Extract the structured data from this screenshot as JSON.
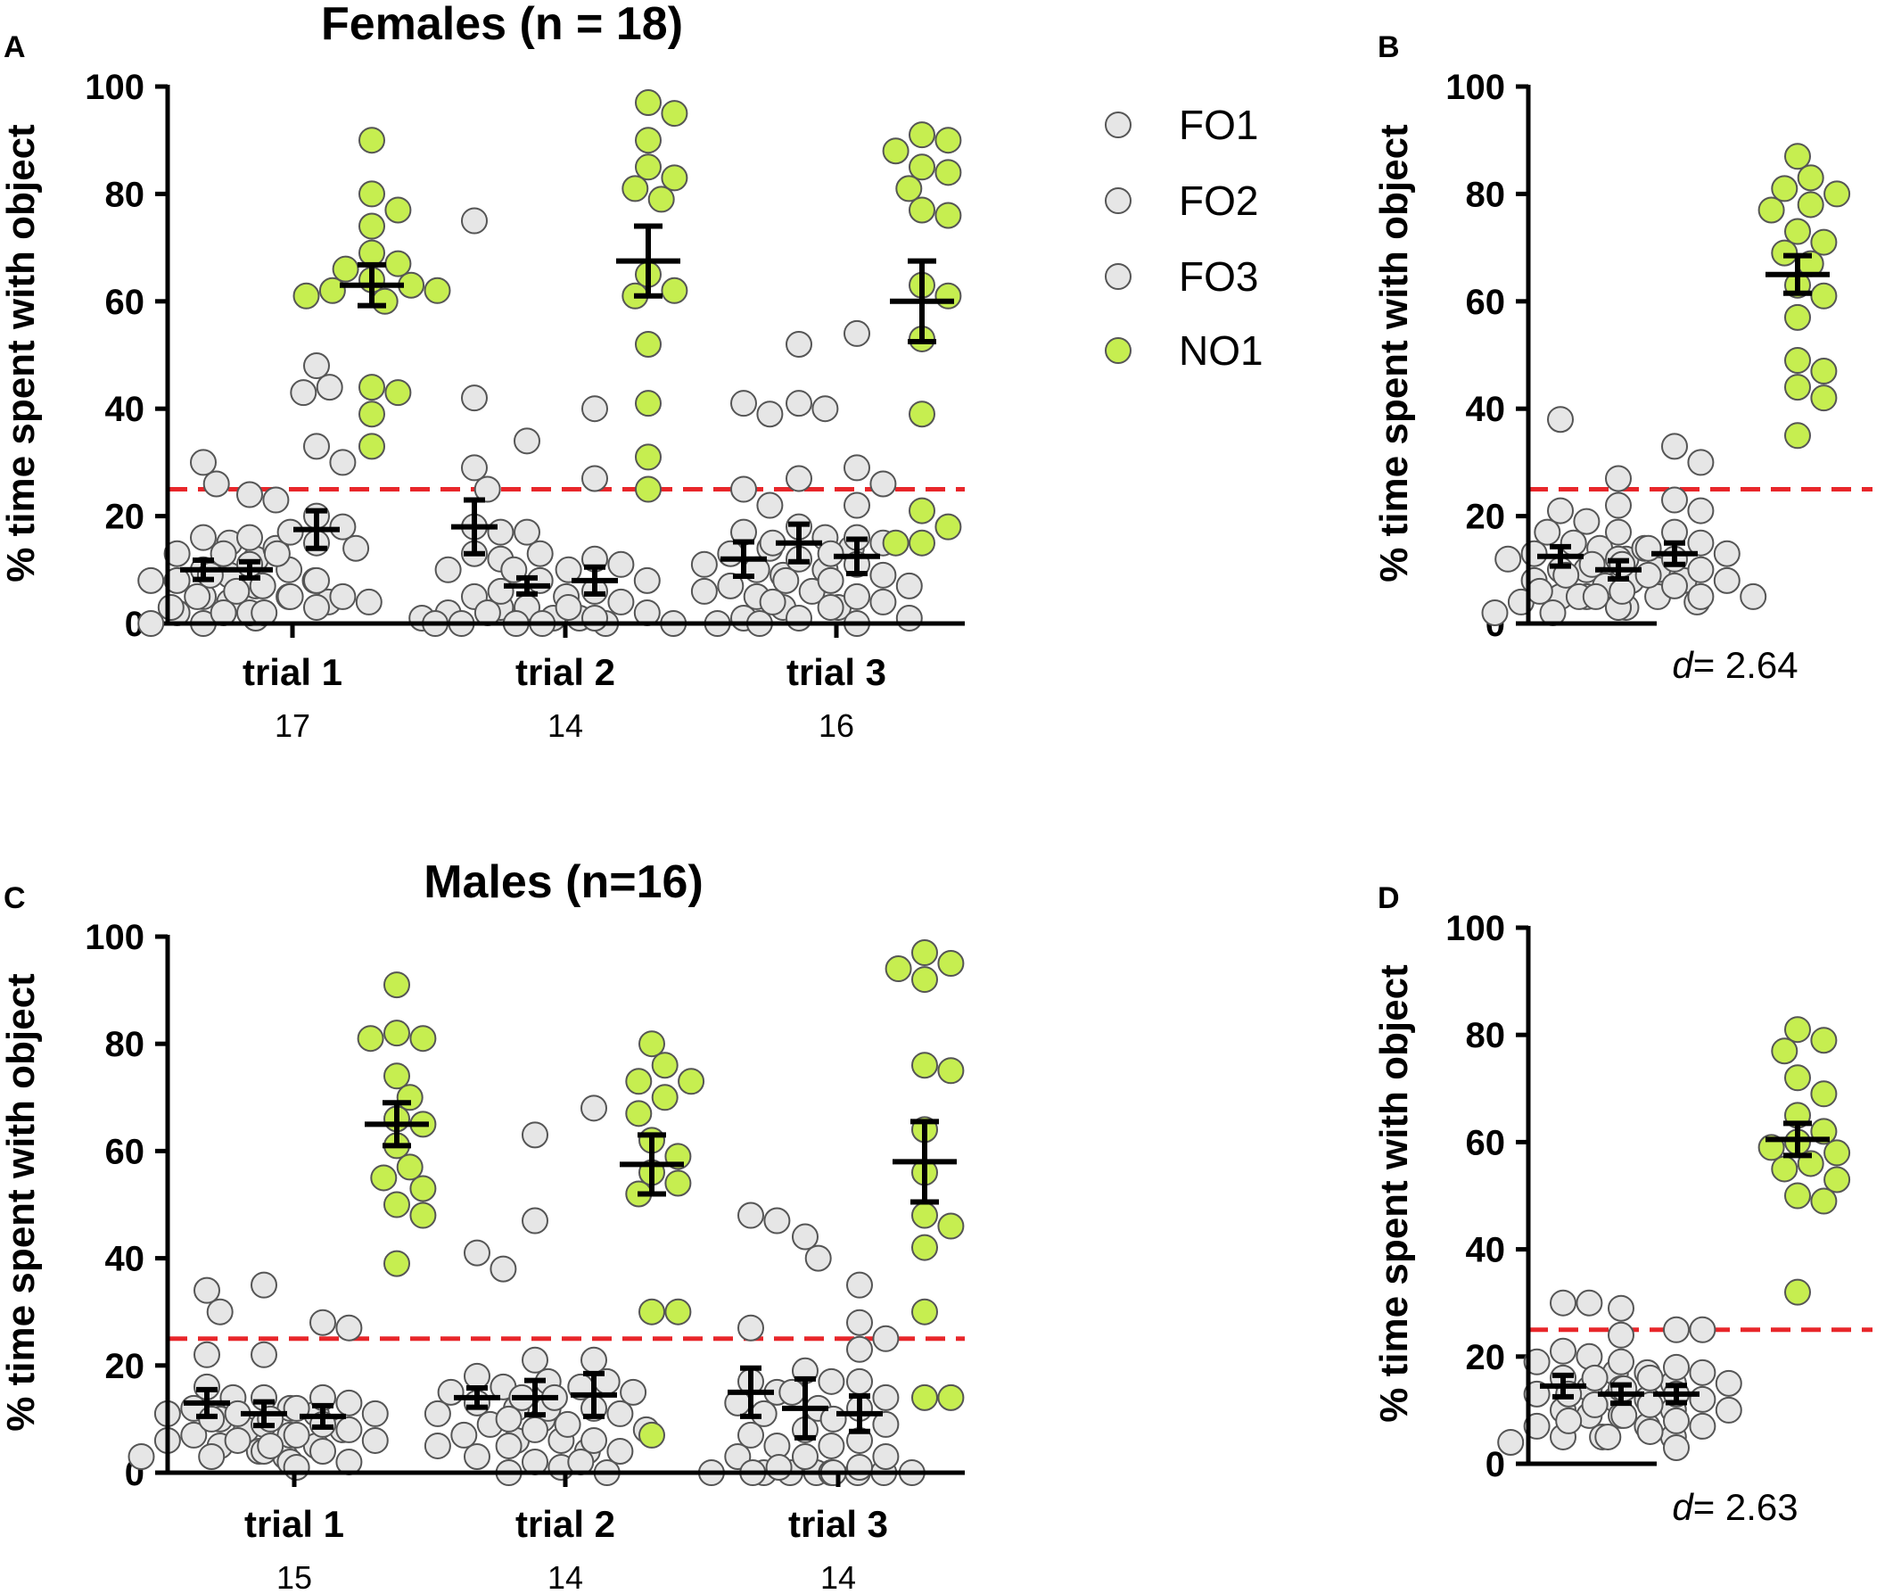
{
  "figure": {
    "legend": [
      {
        "label": "FO1",
        "color": "#e6e6e6"
      },
      {
        "label": "FO2",
        "color": "#e6e6e6"
      },
      {
        "label": "FO3",
        "color": "#e6e6e6"
      },
      {
        "label": "NO1",
        "color": "#c6ee50"
      }
    ],
    "colors": {
      "familiar": "#e6e6e6",
      "novel": "#c6ee50",
      "outline": "#555555",
      "chance_line": "#e8262a",
      "axis": "#000000"
    }
  },
  "chart_data": [
    {
      "id": "A",
      "type": "scatter",
      "panel_letter": "A",
      "title": "Females (n = 18)",
      "ylabel": "% time spent with object",
      "ylim": [
        0,
        100
      ],
      "yticks": [
        "0",
        "20",
        "40",
        "60",
        "80",
        "100"
      ],
      "chance_level": 25,
      "groups": [
        {
          "label": "trial 1",
          "count": "17",
          "series": [
            {
              "name": "FO1",
              "mean": 10,
              "sem": 1.8,
              "values": [
                30,
                26,
                16,
                15,
                13,
                12,
                10,
                9,
                8,
                8,
                7,
                5,
                4,
                2,
                1,
                0,
                0
              ]
            },
            {
              "name": "FO2",
              "mean": 10,
              "sem": 1.5,
              "values": [
                24,
                23,
                16,
                14,
                13,
                11,
                10,
                9,
                8,
                7,
                6,
                5,
                5,
                4,
                3,
                2,
                2
              ]
            },
            {
              "name": "FO3",
              "mean": 17.5,
              "sem": 3.5,
              "values": [
                48,
                44,
                43,
                33,
                30,
                20,
                18,
                17,
                15,
                14,
                13,
                8,
                5,
                5,
                4,
                3,
                2
              ]
            },
            {
              "name": "NO1",
              "mean": 63,
              "sem": 3.8,
              "values": [
                90,
                80,
                77,
                74,
                69,
                67,
                66,
                64,
                63,
                62,
                62,
                61,
                60,
                44,
                43,
                39,
                33
              ]
            }
          ]
        },
        {
          "label": "trial 2",
          "count": "14",
          "series": [
            {
              "name": "FO1",
              "mean": 18,
              "sem": 5,
              "values": [
                75,
                42,
                29,
                25,
                18,
                17,
                13,
                12,
                10,
                5,
                3,
                2,
                2,
                1
              ]
            },
            {
              "name": "FO2",
              "mean": 7,
              "sem": 1.5,
              "values": [
                34,
                17,
                13,
                10,
                8,
                6,
                5,
                3,
                2,
                1,
                1,
                0,
                0,
                0
              ]
            },
            {
              "name": "FO3",
              "mean": 8,
              "sem": 2.5,
              "values": [
                40,
                27,
                12,
                11,
                10,
                8,
                6,
                4,
                3,
                2,
                1,
                0,
                0,
                0
              ]
            },
            {
              "name": "NO1",
              "mean": 67.5,
              "sem": 6.5,
              "values": [
                97,
                95,
                90,
                85,
                83,
                81,
                79,
                65,
                62,
                61,
                52,
                41,
                31,
                25
              ]
            }
          ]
        },
        {
          "label": "trial 3",
          "count": "16",
          "series": [
            {
              "name": "FO1",
              "mean": 12,
              "sem": 3.2,
              "values": [
                41,
                39,
                25,
                22,
                17,
                14,
                13,
                11,
                10,
                9,
                7,
                6,
                5,
                3,
                1,
                0
              ]
            },
            {
              "name": "FO2",
              "mean": 15,
              "sem": 3.5,
              "values": [
                52,
                41,
                40,
                27,
                18,
                16,
                15,
                14,
                12,
                10,
                8,
                6,
                4,
                3,
                1,
                0
              ]
            },
            {
              "name": "FO3",
              "mean": 12.5,
              "sem": 3.2,
              "values": [
                54,
                29,
                26,
                22,
                16,
                15,
                13,
                11,
                9,
                8,
                7,
                5,
                4,
                3,
                1,
                0
              ]
            },
            {
              "name": "NO1",
              "mean": 60,
              "sem": 7.5,
              "values": [
                91,
                90,
                88,
                85,
                84,
                81,
                77,
                76,
                63,
                61,
                53,
                39,
                21,
                18,
                15,
                15
              ]
            }
          ]
        }
      ]
    },
    {
      "id": "B",
      "type": "scatter",
      "panel_letter": "B",
      "ylabel": "% time spent with object",
      "ylim": [
        0,
        100
      ],
      "yticks": [
        "0",
        "20",
        "40",
        "60",
        "80",
        "100"
      ],
      "chance_level": 25,
      "effect_label": "= 2.64",
      "effect_symbol": "d",
      "series": [
        {
          "name": "FO1",
          "mean": 12.5,
          "sem": 1.8,
          "values": [
            38,
            21,
            19,
            17,
            15,
            14,
            13,
            12,
            12,
            10,
            10,
            8,
            7,
            5,
            5,
            4,
            3,
            2
          ]
        },
        {
          "name": "FO2",
          "mean": 10,
          "sem": 1.7,
          "values": [
            27,
            22,
            17,
            14,
            12,
            11,
            10,
            9,
            8,
            8,
            7,
            6,
            5,
            5,
            4,
            3,
            3,
            2
          ]
        },
        {
          "name": "FO3",
          "mean": 13,
          "sem": 2,
          "values": [
            33,
            30,
            23,
            21,
            17,
            15,
            14,
            13,
            12,
            11,
            10,
            9,
            8,
            7,
            6,
            5,
            5,
            5
          ]
        },
        {
          "name": "NO1",
          "mean": 65,
          "sem": 3.5,
          "values": [
            87,
            83,
            81,
            80,
            78,
            77,
            73,
            71,
            69,
            67,
            63,
            61,
            57,
            49,
            47,
            44,
            42,
            35
          ]
        }
      ]
    },
    {
      "id": "C",
      "type": "scatter",
      "panel_letter": "C",
      "title": "Males (n=16)",
      "ylabel": "% time spent with object",
      "ylim": [
        0,
        100
      ],
      "yticks": [
        "0",
        "20",
        "40",
        "60",
        "80",
        "100"
      ],
      "chance_level": 25,
      "groups": [
        {
          "label": "trial 1",
          "count": "15",
          "series": [
            {
              "name": "FO1",
              "mean": 13,
              "sem": 2.5,
              "values": [
                34,
                30,
                22,
                16,
                14,
                12,
                11,
                10,
                8,
                7,
                6,
                5,
                4,
                3,
                3
              ]
            },
            {
              "name": "FO2",
              "mean": 11,
              "sem": 2.2,
              "values": [
                35,
                22,
                14,
                12,
                11,
                11,
                10,
                9,
                8,
                7,
                6,
                5,
                4,
                3,
                2
              ]
            },
            {
              "name": "FO3",
              "mean": 10.5,
              "sem": 2,
              "values": [
                28,
                27,
                14,
                13,
                12,
                11,
                10,
                9,
                8,
                7,
                6,
                5,
                4,
                2,
                1
              ]
            },
            {
              "name": "NO1",
              "mean": 65,
              "sem": 4,
              "values": [
                91,
                82,
                81,
                81,
                74,
                70,
                66,
                65,
                61,
                57,
                55,
                53,
                50,
                48,
                39
              ]
            }
          ]
        },
        {
          "label": "trial 2",
          "count": "14",
          "series": [
            {
              "name": "FO1",
              "mean": 14,
              "sem": 1.8,
              "values": [
                41,
                38,
                18,
                16,
                15,
                13,
                12,
                11,
                10,
                9,
                7,
                6,
                5,
                3
              ]
            },
            {
              "name": "FO2",
              "mean": 14,
              "sem": 3.2,
              "values": [
                63,
                47,
                21,
                17,
                14,
                12,
                10,
                8,
                6,
                5,
                4,
                2,
                1,
                0
              ]
            },
            {
              "name": "FO3",
              "mean": 14.5,
              "sem": 4,
              "values": [
                68,
                21,
                17,
                16,
                15,
                14,
                12,
                11,
                9,
                8,
                6,
                4,
                2,
                0
              ]
            },
            {
              "name": "NO1",
              "mean": 57.5,
              "sem": 5.5,
              "values": [
                80,
                76,
                73,
                73,
                70,
                67,
                62,
                59,
                56,
                54,
                52,
                30,
                30,
                7
              ]
            }
          ]
        },
        {
          "label": "trial 3",
          "count": "14",
          "series": [
            {
              "name": "FO1",
              "mean": 15,
              "sem": 4.5,
              "values": [
                48,
                47,
                27,
                17,
                15,
                13,
                11,
                7,
                5,
                3,
                0,
                0,
                0,
                0
              ]
            },
            {
              "name": "FO2",
              "mean": 12,
              "sem": 5.5,
              "values": [
                44,
                40,
                19,
                17,
                15,
                12,
                8,
                5,
                3,
                1,
                0,
                0,
                0,
                0
              ]
            },
            {
              "name": "FO3",
              "mean": 11,
              "sem": 3.3,
              "values": [
                35,
                28,
                25,
                23,
                17,
                14,
                12,
                10,
                9,
                6,
                3,
                1,
                0,
                0
              ]
            },
            {
              "name": "NO1",
              "mean": 58,
              "sem": 7.5,
              "values": [
                97,
                95,
                94,
                92,
                76,
                75,
                64,
                56,
                48,
                46,
                42,
                30,
                14,
                14
              ]
            }
          ]
        }
      ]
    },
    {
      "id": "D",
      "type": "scatter",
      "panel_letter": "D",
      "ylabel": "% time spent with object",
      "ylim": [
        0,
        100
      ],
      "yticks": [
        "0",
        "20",
        "40",
        "60",
        "80",
        "100"
      ],
      "chance_level": 25,
      "effect_label": "= 2.63",
      "effect_symbol": "d",
      "series": [
        {
          "name": "FO1",
          "mean": 14.5,
          "sem": 2,
          "values": [
            30,
            30,
            21,
            20,
            19,
            17,
            16,
            14,
            13,
            12,
            10,
            9,
            7,
            5,
            5,
            4
          ]
        },
        {
          "name": "FO2",
          "mean": 13,
          "sem": 1.7,
          "values": [
            29,
            24,
            19,
            17,
            16,
            15,
            14,
            13,
            12,
            11,
            10,
            9,
            8,
            7,
            5,
            5
          ]
        },
        {
          "name": "FO3",
          "mean": 13,
          "sem": 1.6,
          "values": [
            25,
            25,
            18,
            17,
            16,
            15,
            14,
            13,
            12,
            11,
            10,
            9,
            8,
            7,
            6,
            3
          ]
        },
        {
          "name": "NO1",
          "mean": 60.5,
          "sem": 3,
          "values": [
            81,
            79,
            77,
            72,
            69,
            65,
            62,
            60,
            59,
            58,
            56,
            55,
            53,
            50,
            49,
            32
          ]
        }
      ]
    }
  ]
}
